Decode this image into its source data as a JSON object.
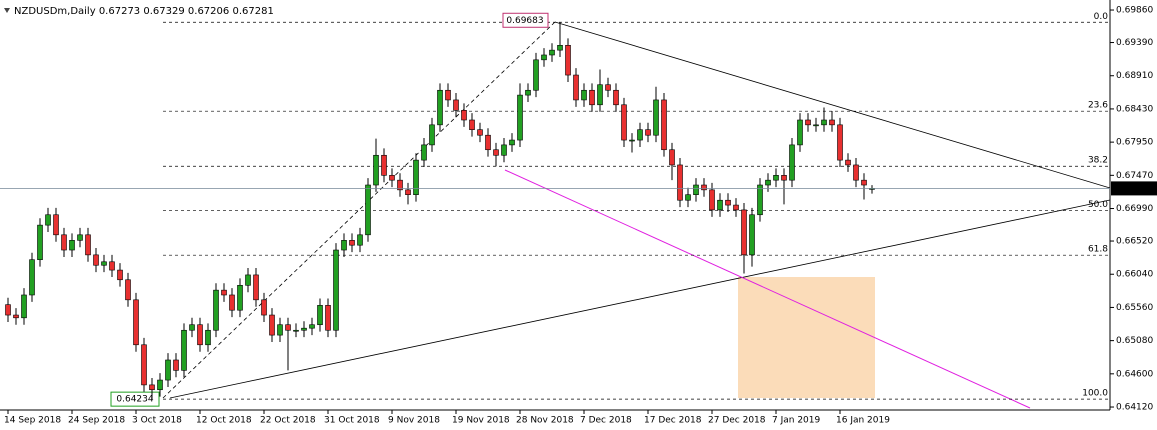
{
  "chart_data": {
    "type": "candlestick",
    "title": "NZDUSDm,Daily",
    "categories": [
      "14 Sep 2018",
      null,
      null,
      null,
      null,
      null,
      null,
      null,
      "24 Sep 2018",
      null,
      null,
      null,
      null,
      null,
      null,
      null,
      "3 Oct 2018",
      null,
      null,
      null,
      null,
      null,
      null,
      null,
      "12 Oct 2018",
      null,
      null,
      null,
      null,
      null,
      null,
      null,
      "22 Oct 2018",
      null,
      null,
      null,
      null,
      null,
      null,
      null,
      "31 Oct 2018",
      null,
      null,
      null,
      null,
      null,
      null,
      null,
      "9 Nov 2018",
      null,
      null,
      null,
      null,
      null,
      null,
      null,
      "19 Nov 2018",
      null,
      null,
      null,
      null,
      null,
      null,
      null,
      "28 Nov 2018",
      null,
      null,
      null,
      null,
      null,
      null,
      null,
      "7 Dec 2018",
      null,
      null,
      null,
      null,
      null,
      null,
      null,
      "17 Dec 2018",
      null,
      null,
      null,
      null,
      null,
      null,
      null,
      "27 Dec 2018",
      null,
      null,
      null,
      null,
      null,
      null,
      null,
      "7 Jan 2019",
      null,
      null,
      null,
      null,
      null,
      null,
      null,
      "16 Jan 2019",
      null,
      null,
      null,
      null
    ],
    "open": [
      0.656,
      0.6545,
      0.6541,
      0.6574,
      0.6625,
      0.6675,
      0.669,
      0.6661,
      0.6639,
      0.6653,
      0.6661,
      0.6632,
      0.6617,
      0.6622,
      0.661,
      0.6596,
      0.6567,
      0.6502,
      0.6444,
      0.6437,
      0.6451,
      0.648,
      0.6465,
      0.6523,
      0.6531,
      0.6502,
      0.6523,
      0.6581,
      0.6574,
      0.6552,
      0.6588,
      0.6603,
      0.6567,
      0.6545,
      0.6516,
      0.6531,
      0.6523,
      0.6523,
      0.6526,
      0.6531,
      0.6559,
      0.6523,
      0.6639,
      0.6653,
      0.6646,
      0.6661,
      0.6733,
      0.6776,
      0.6747,
      0.674,
      0.6726,
      0.6719,
      0.6769,
      0.6791,
      0.682,
      0.687,
      0.6856,
      0.6841,
      0.6827,
      0.6813,
      0.6805,
      0.6784,
      0.6776,
      0.6791,
      0.6798,
      0.6863,
      0.687,
      0.6914,
      0.6921,
      0.6928,
      0.6935,
      0.6892,
      0.6856,
      0.687,
      0.6849,
      0.6878,
      0.687,
      0.6849,
      0.6798,
      0.6798,
      0.6813,
      0.6805,
      0.6856,
      0.6784,
      0.6762,
      0.6711,
      0.6719,
      0.6733,
      0.6726,
      0.6697,
      0.6711,
      0.6704,
      0.6697,
      0.6632,
      0.669,
      0.6733,
      0.674,
      0.6747,
      0.674,
      0.6791,
      0.6827,
      0.682,
      0.682,
      0.6827,
      0.682,
      0.6769,
      0.6762,
      0.674,
      0.67273
    ],
    "high": [
      0.657,
      0.6555,
      0.6584,
      0.6635,
      0.6685,
      0.67,
      0.67,
      0.6671,
      0.6663,
      0.6671,
      0.6671,
      0.6642,
      0.6632,
      0.6632,
      0.662,
      0.6606,
      0.6577,
      0.6512,
      0.6454,
      0.6461,
      0.649,
      0.649,
      0.6533,
      0.6541,
      0.6541,
      0.6533,
      0.6591,
      0.6591,
      0.6584,
      0.6598,
      0.6613,
      0.6613,
      0.6577,
      0.6555,
      0.6541,
      0.6541,
      0.6533,
      0.6536,
      0.6541,
      0.6569,
      0.6569,
      0.6649,
      0.6663,
      0.6663,
      0.6671,
      0.6743,
      0.68,
      0.6786,
      0.6757,
      0.675,
      0.6736,
      0.6779,
      0.6801,
      0.683,
      0.688,
      0.688,
      0.6866,
      0.6851,
      0.6837,
      0.6823,
      0.6815,
      0.6794,
      0.6801,
      0.6808,
      0.688,
      0.688,
      0.6924,
      0.6931,
      0.6938,
      0.69683,
      0.6945,
      0.6902,
      0.688,
      0.688,
      0.69,
      0.6888,
      0.688,
      0.6859,
      0.6808,
      0.6823,
      0.6823,
      0.6875,
      0.6866,
      0.6794,
      0.6772,
      0.6729,
      0.6743,
      0.6743,
      0.6736,
      0.6721,
      0.6721,
      0.6714,
      0.6707,
      0.67,
      0.6743,
      0.675,
      0.6757,
      0.6757,
      0.6801,
      0.6837,
      0.6837,
      0.683,
      0.6845,
      0.684,
      0.683,
      0.6779,
      0.6772,
      0.675,
      0.67329
    ],
    "low": [
      0.6535,
      0.6531,
      0.6531,
      0.6564,
      0.6615,
      0.6665,
      0.6651,
      0.6629,
      0.6629,
      0.6643,
      0.6622,
      0.6607,
      0.6607,
      0.66,
      0.6586,
      0.6557,
      0.6492,
      0.6434,
      0.64234,
      0.6427,
      0.6441,
      0.6455,
      0.6455,
      0.6513,
      0.6492,
      0.6492,
      0.6513,
      0.6564,
      0.6542,
      0.6542,
      0.6578,
      0.6557,
      0.6535,
      0.6506,
      0.6506,
      0.6465,
      0.6513,
      0.6513,
      0.6516,
      0.6521,
      0.6513,
      0.6513,
      0.6629,
      0.6636,
      0.6636,
      0.6651,
      0.6723,
      0.6737,
      0.673,
      0.6716,
      0.6705,
      0.6709,
      0.6759,
      0.6781,
      0.681,
      0.6846,
      0.6831,
      0.6817,
      0.6803,
      0.6795,
      0.6774,
      0.676,
      0.6766,
      0.6781,
      0.6788,
      0.6853,
      0.686,
      0.6904,
      0.6911,
      0.6918,
      0.6882,
      0.6846,
      0.6846,
      0.6839,
      0.6839,
      0.686,
      0.6839,
      0.6788,
      0.678,
      0.6788,
      0.6795,
      0.6795,
      0.6774,
      0.674,
      0.6701,
      0.6701,
      0.6709,
      0.6716,
      0.6687,
      0.6687,
      0.6694,
      0.6687,
      0.6605,
      0.6615,
      0.668,
      0.6723,
      0.673,
      0.6705,
      0.673,
      0.6781,
      0.681,
      0.681,
      0.681,
      0.681,
      0.6759,
      0.6752,
      0.673,
      0.6712,
      0.67206
    ],
    "close": [
      0.6545,
      0.6541,
      0.6574,
      0.6625,
      0.6675,
      0.669,
      0.6661,
      0.6639,
      0.6653,
      0.6661,
      0.6632,
      0.6617,
      0.6622,
      0.661,
      0.6596,
      0.6567,
      0.6502,
      0.6444,
      0.6437,
      0.6451,
      0.648,
      0.6465,
      0.6523,
      0.6531,
      0.6502,
      0.6523,
      0.6581,
      0.6574,
      0.6552,
      0.6588,
      0.6603,
      0.6567,
      0.6545,
      0.6516,
      0.6531,
      0.6523,
      0.6523,
      0.6526,
      0.6531,
      0.6559,
      0.6523,
      0.6639,
      0.6653,
      0.6646,
      0.6661,
      0.6733,
      0.6776,
      0.6747,
      0.674,
      0.6726,
      0.6719,
      0.6769,
      0.6791,
      0.682,
      0.687,
      0.6856,
      0.6841,
      0.6827,
      0.6813,
      0.6805,
      0.6784,
      0.6776,
      0.6791,
      0.6798,
      0.6863,
      0.687,
      0.6914,
      0.6921,
      0.6928,
      0.6935,
      0.6892,
      0.6856,
      0.687,
      0.6849,
      0.6878,
      0.687,
      0.6849,
      0.6798,
      0.6798,
      0.6813,
      0.6805,
      0.6856,
      0.6784,
      0.6762,
      0.6711,
      0.6719,
      0.6733,
      0.6726,
      0.6697,
      0.6711,
      0.6704,
      0.6697,
      0.6632,
      0.669,
      0.6733,
      0.674,
      0.6747,
      0.674,
      0.6791,
      0.6827,
      0.682,
      0.682,
      0.6827,
      0.682,
      0.6769,
      0.6762,
      0.674,
      0.6733,
      0.67281
    ],
    "up_color": "#22a022",
    "down_color": "#e83030",
    "ylim": [
      0.64077,
      0.70005
    ],
    "yticks": [
      {
        "value": 0.6986,
        "label": "0.69860"
      },
      {
        "value": 0.6939,
        "label": "0.69390"
      },
      {
        "value": 0.6891,
        "label": "0.68910"
      },
      {
        "value": 0.6843,
        "label": "0.68430"
      },
      {
        "value": 0.6795,
        "label": "0.67950"
      },
      {
        "value": 0.6747,
        "label": "0.67470"
      },
      {
        "value": 0.6699,
        "label": "0.66990"
      },
      {
        "value": 0.6652,
        "label": "0.66520"
      },
      {
        "value": 0.6604,
        "label": "0.66040"
      },
      {
        "value": 0.6556,
        "label": "0.65560"
      },
      {
        "value": 0.6508,
        "label": "0.65080"
      },
      {
        "value": 0.646,
        "label": "0.64600"
      },
      {
        "value": 0.6412,
        "label": "0.64120"
      }
    ],
    "fibonacci": {
      "high": 0.69683,
      "low": 0.64234,
      "levels": [
        {
          "value": 0,
          "label": "0.0"
        },
        23.6,
        38.2,
        {
          "value": 50,
          "label": "50.0"
        },
        61.8,
        {
          "value": 100,
          "label": "100.0"
        }
      ]
    }
  }
}
